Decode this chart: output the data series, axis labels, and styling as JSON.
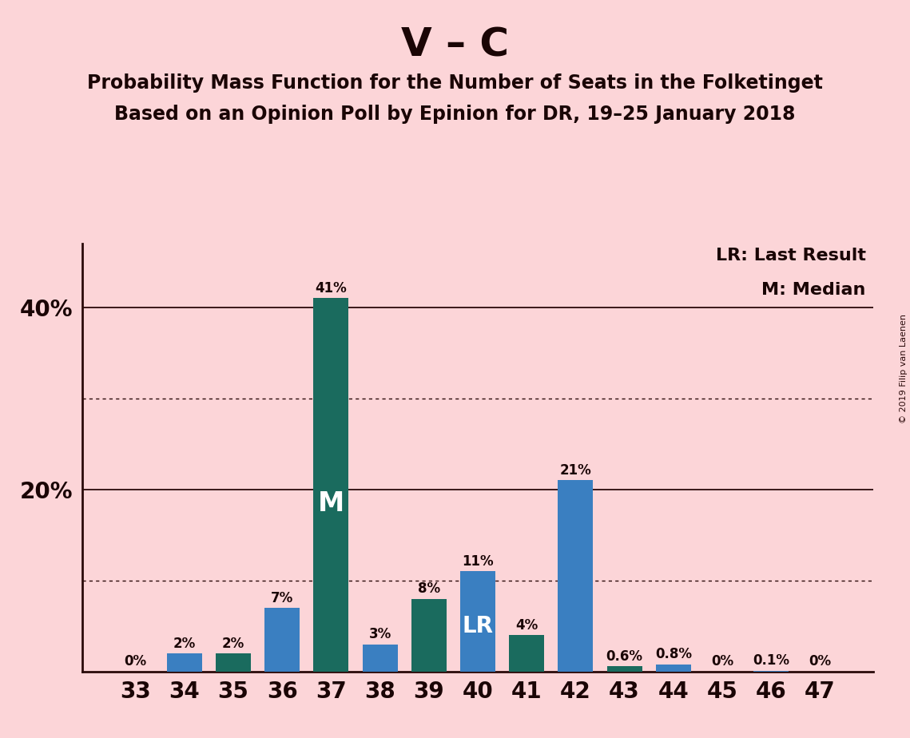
{
  "title": "V – C",
  "subtitle1": "Probability Mass Function for the Number of Seats in the Folketinget",
  "subtitle2": "Based on an Opinion Poll by Epinion for DR, 19–25 January 2018",
  "copyright": "© 2019 Filip van Laenen",
  "seats": [
    33,
    34,
    35,
    36,
    37,
    38,
    39,
    40,
    41,
    42,
    43,
    44,
    45,
    46,
    47
  ],
  "values": [
    0.0,
    2.0,
    2.0,
    7.0,
    41.0,
    3.0,
    8.0,
    11.0,
    4.0,
    21.0,
    0.6,
    0.8,
    0.0,
    0.1,
    0.0
  ],
  "labels": [
    "0%",
    "2%",
    "2%",
    "7%",
    "41%",
    "3%",
    "8%",
    "11%",
    "4%",
    "21%",
    "0.6%",
    "0.8%",
    "0%",
    "0.1%",
    "0%"
  ],
  "bar_colors": [
    "#1a6b5e",
    "#3a7fc1",
    "#1a6b5e",
    "#3a7fc1",
    "#1a6b5e",
    "#3a7fc1",
    "#1a6b5e",
    "#3a7fc1",
    "#1a6b5e",
    "#3a7fc1",
    "#1a6b5e",
    "#3a7fc1",
    "#1a6b5e",
    "#3a7fc1",
    "#1a6b5e"
  ],
  "background_color": "#fcd5d8",
  "text_color": "#1a0505",
  "spine_color": "#2a0a0a",
  "median_seat": 37,
  "lr_seat": 40,
  "legend_lr": "LR: Last Result",
  "legend_m": "M: Median",
  "solid_gridlines": [
    20,
    40
  ],
  "dotted_gridlines": [
    10,
    30
  ],
  "ylim": [
    0,
    47
  ],
  "bar_width": 0.72
}
